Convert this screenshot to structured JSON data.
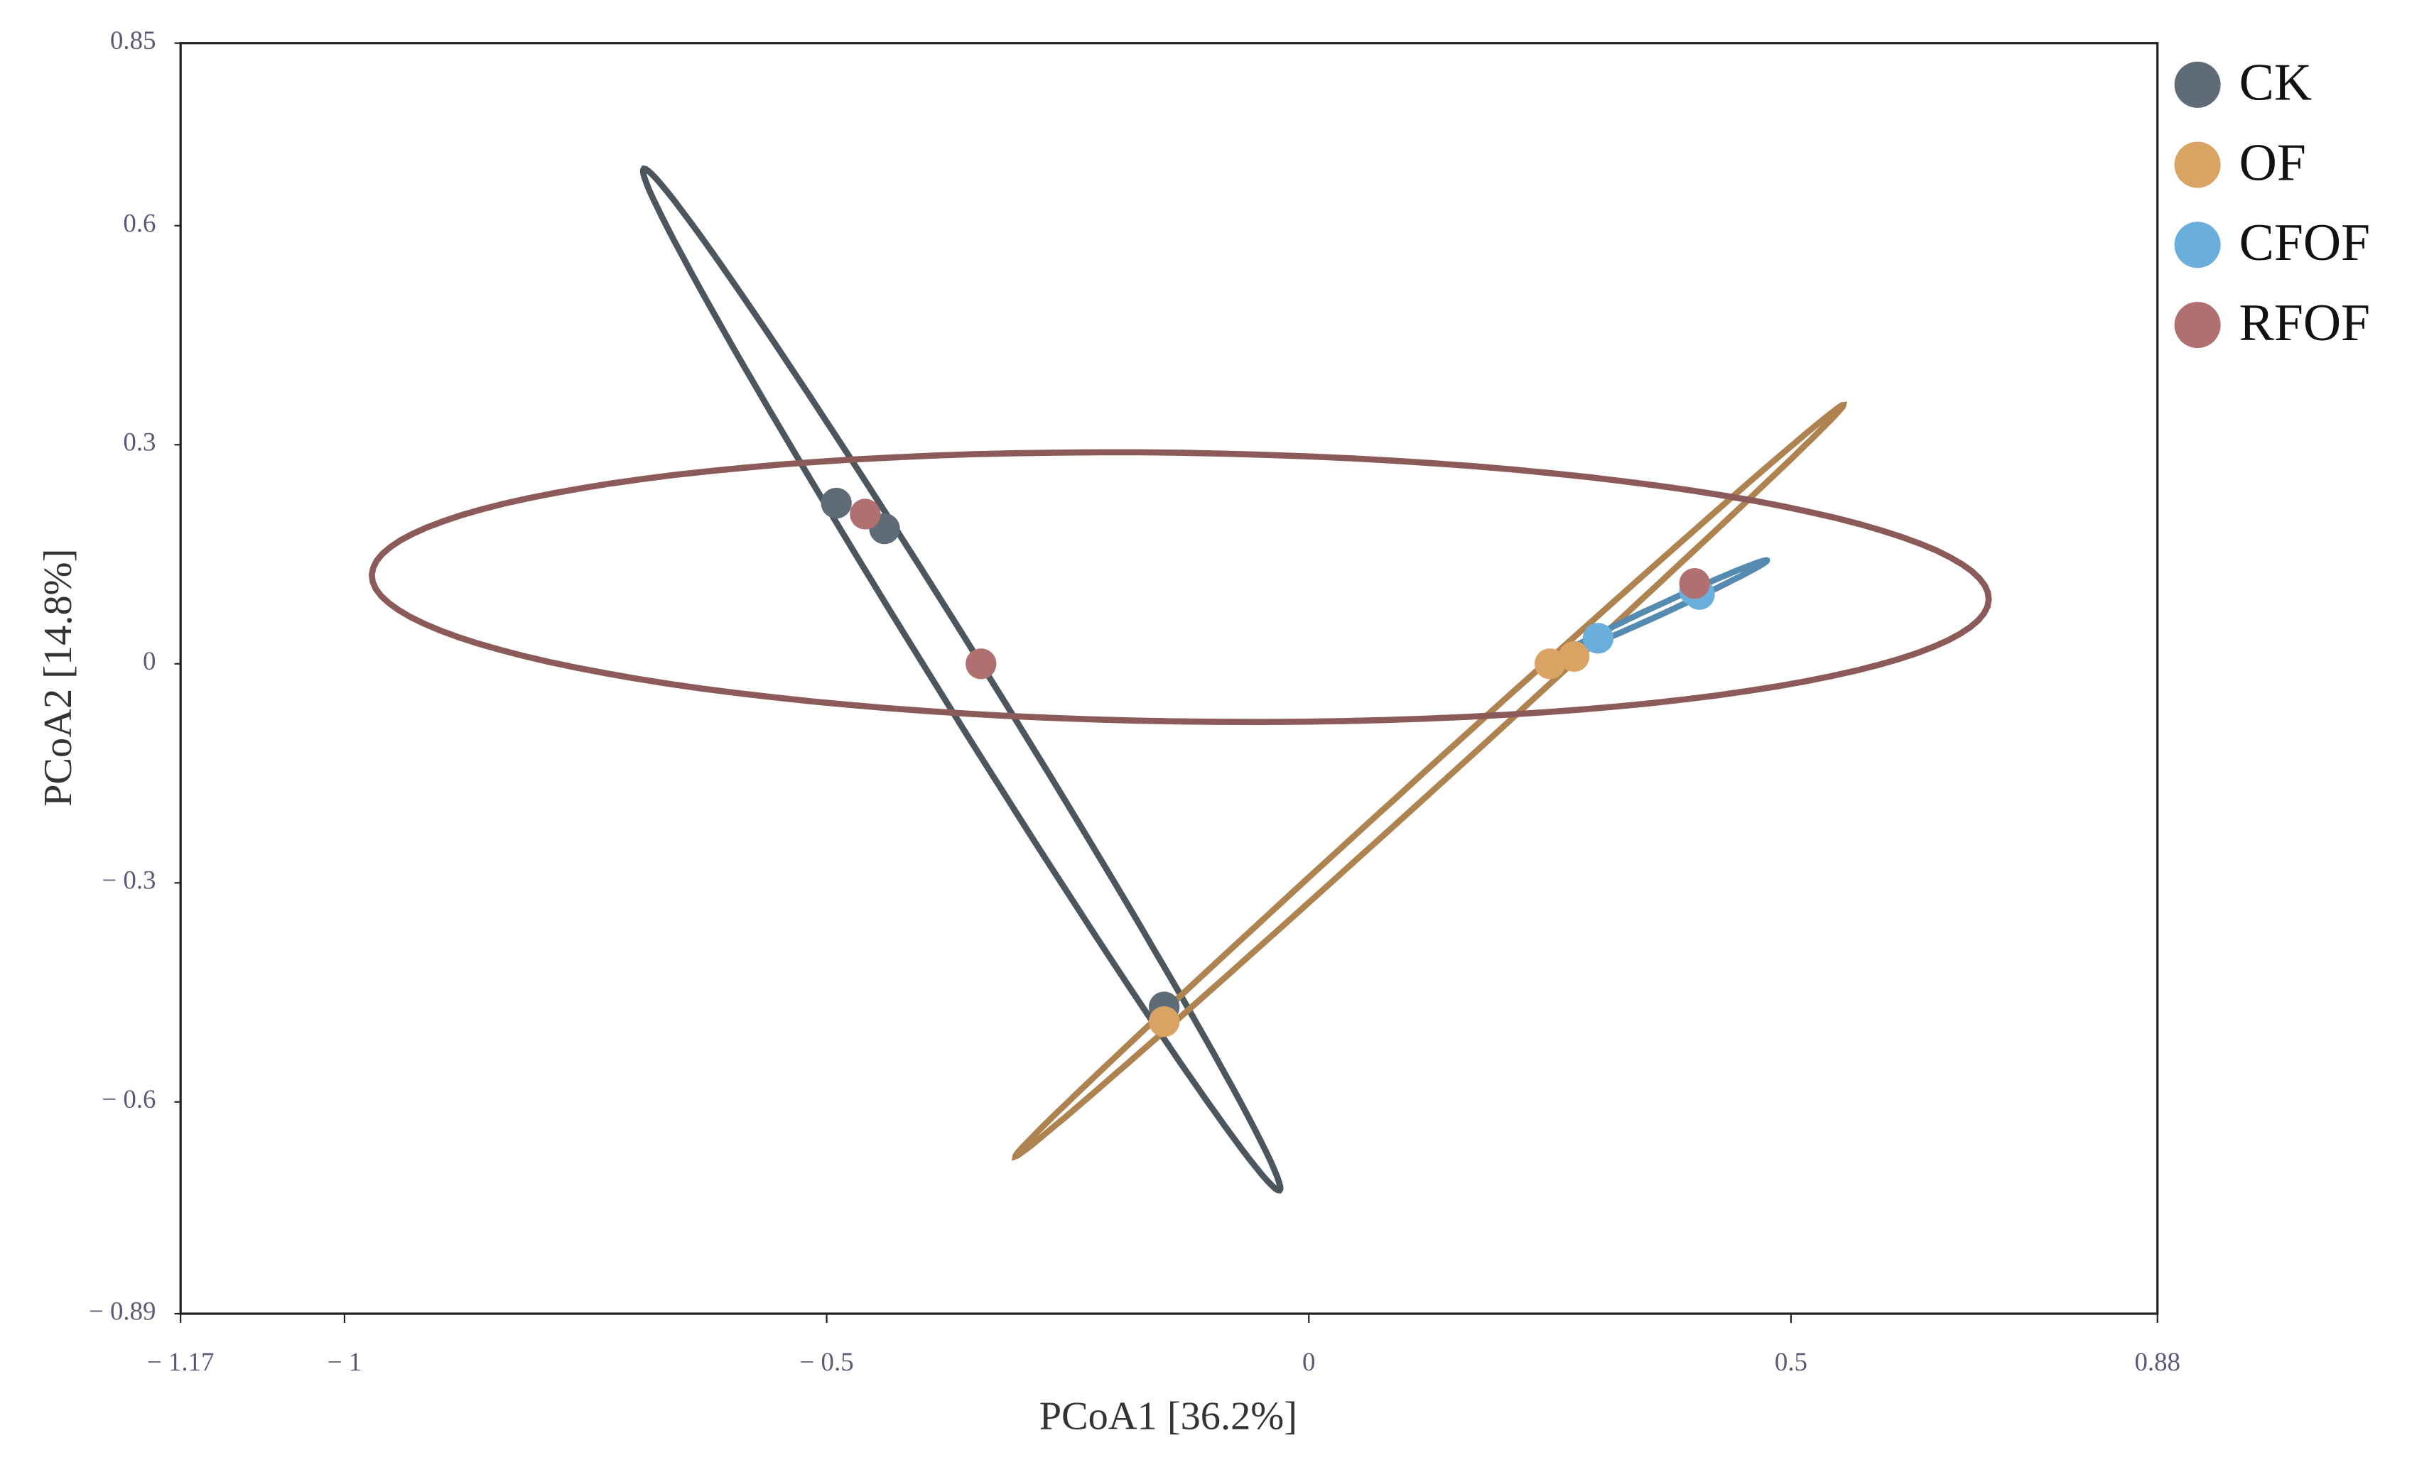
{
  "chart_data": {
    "type": "scatter",
    "x_label": "PCoA1 [36.2%]",
    "y_label": "PCoA2 [14.8%]",
    "xlim": [
      -1.17,
      0.88
    ],
    "ylim": [
      -0.89,
      0.85
    ],
    "xticks": [
      {
        "value": -1.17,
        "label": "− 1.17"
      },
      {
        "value": -1,
        "label": "− 1"
      },
      {
        "value": -0.5,
        "label": "− 0.5"
      },
      0,
      0.5,
      0.88
    ],
    "yticks": [
      {
        "value": -0.89,
        "label": "− 0.89"
      },
      {
        "value": -0.6,
        "label": "− 0.6"
      },
      {
        "value": -0.3,
        "label": "− 0.3"
      },
      0,
      0.3,
      0.6,
      0.85
    ],
    "ellipses": true,
    "series": [
      {
        "name": "CK",
        "color": "#5f6b77",
        "x": [
          -0.49,
          -0.44,
          -0.15
        ],
        "y": [
          0.22,
          0.185,
          -0.47
        ]
      },
      {
        "name": "OF",
        "color": "#d9a463",
        "x": [
          -0.15,
          0.25,
          0.275
        ],
        "y": [
          -0.49,
          0.0,
          0.01
        ]
      },
      {
        "name": "CFOF",
        "color": "#6aaedc",
        "x": [
          0.3,
          0.4,
          0.405
        ],
        "y": [
          0.035,
          0.1,
          0.095
        ]
      },
      {
        "name": "RFOF",
        "color": "#b07070",
        "x": [
          -0.46,
          -0.34,
          0.4
        ],
        "y": [
          0.205,
          0.0,
          0.11
        ]
      }
    ]
  }
}
